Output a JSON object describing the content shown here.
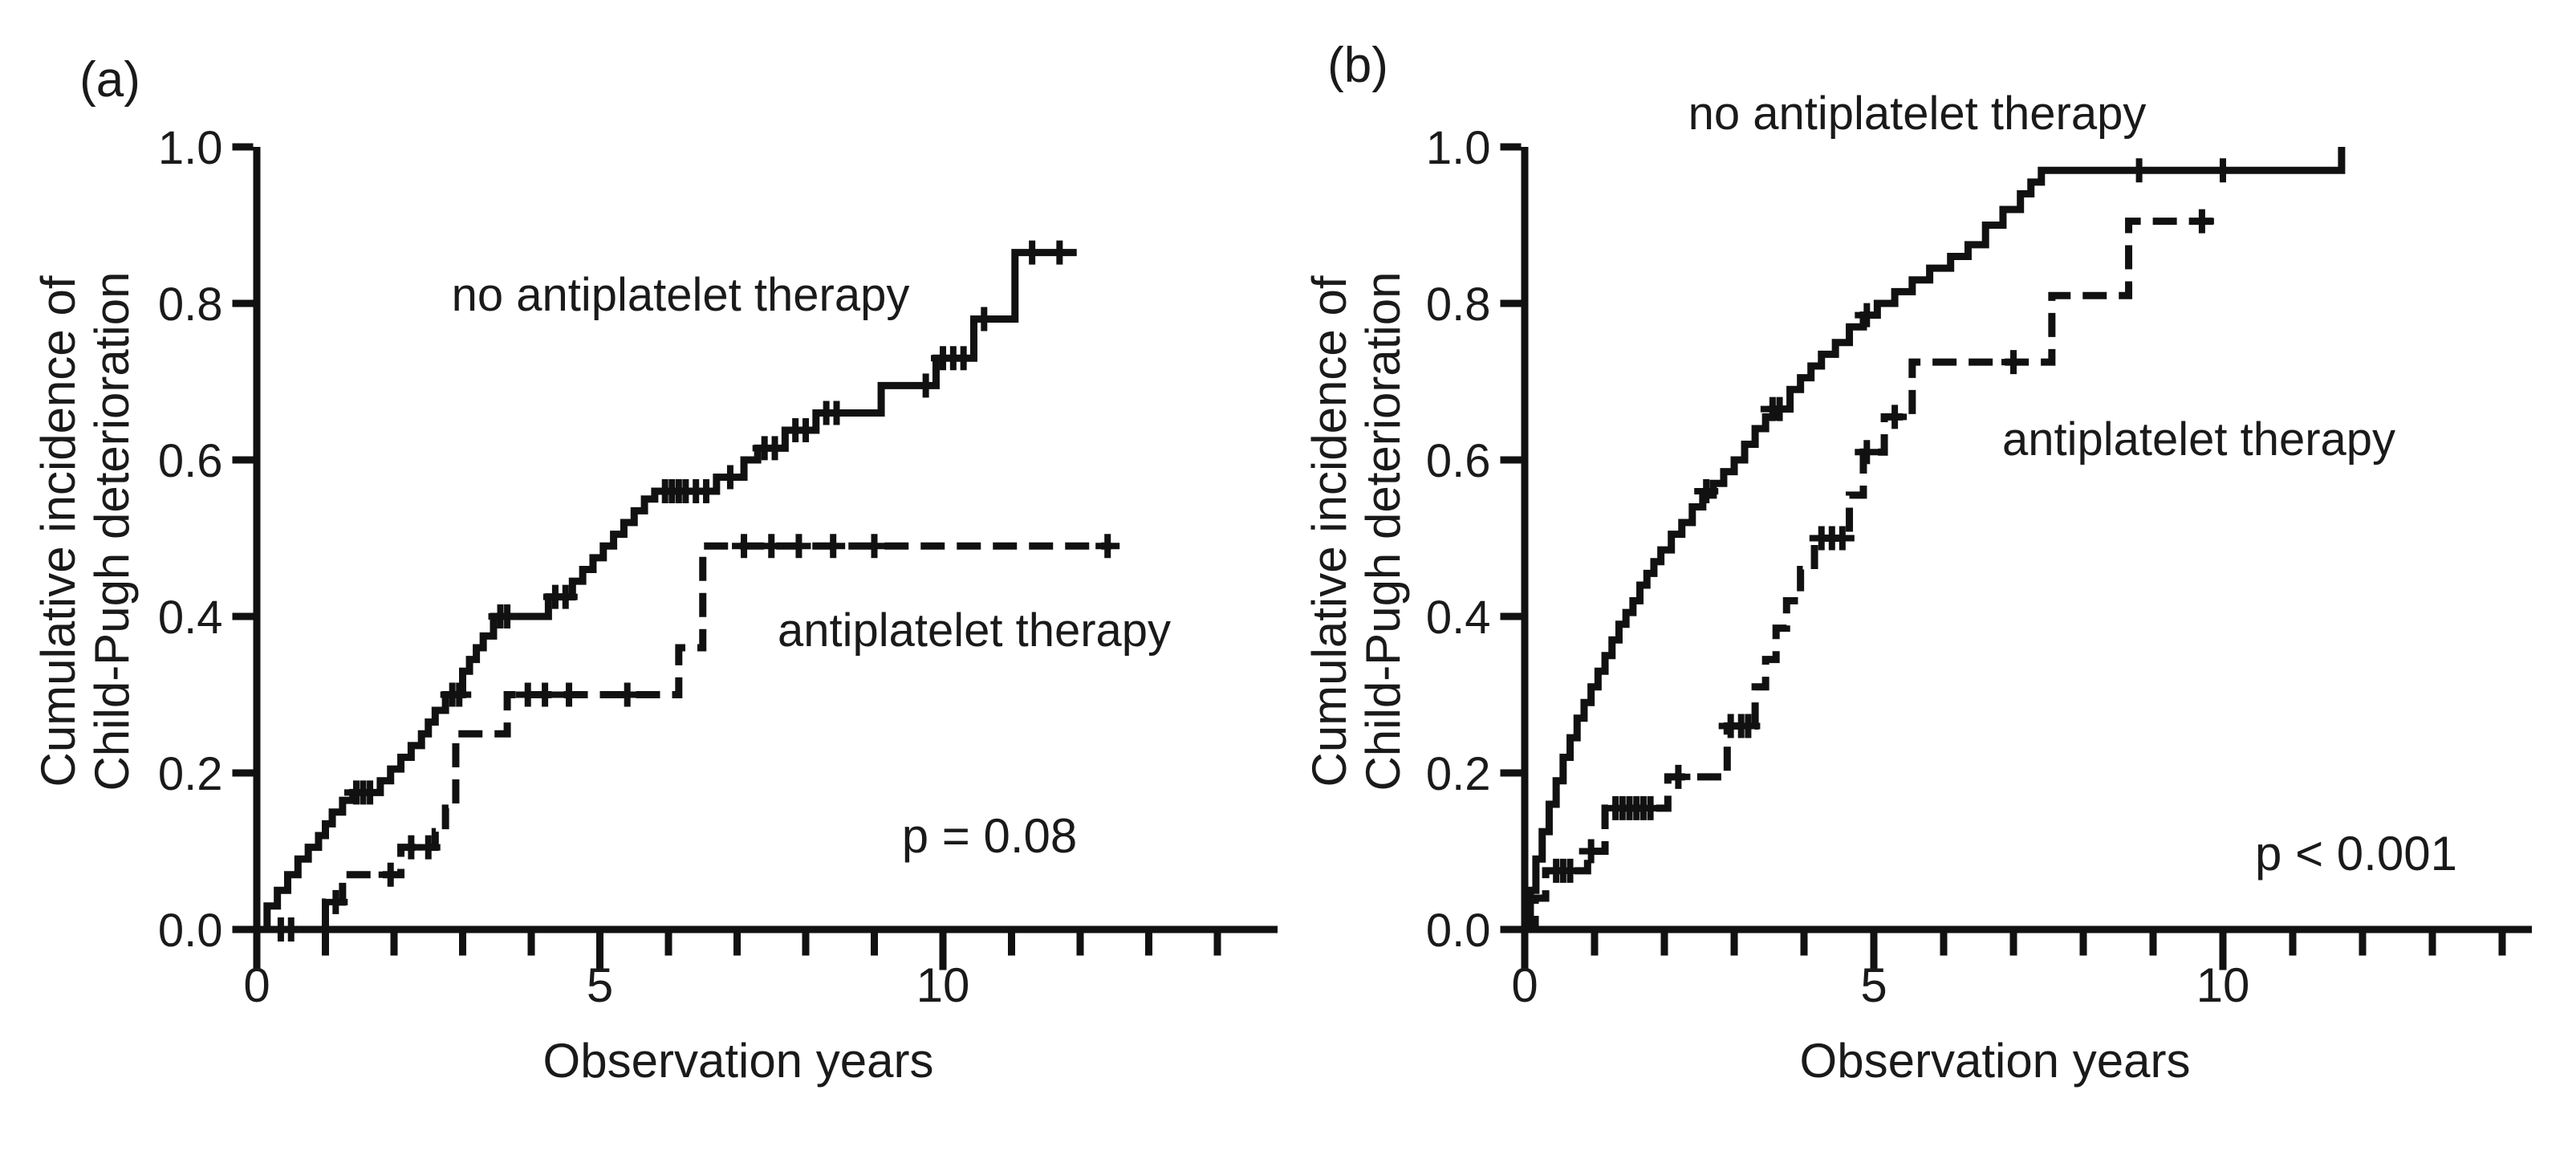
{
  "colors": {
    "curve": "#111111",
    "text": "#1a1a1a",
    "background": "#ffffff"
  },
  "chart_data": {
    "type": "line",
    "chart_kind": "cumulative-incidence-step-curves",
    "panels": [
      {
        "label": "(a)",
        "xlabel": "Observation years",
        "ylabel_line1": "Cumulative incidence of",
        "ylabel_line2": "Child-Pugh deterioration",
        "p_value": "p = 0.08",
        "xlim": [
          0,
          14.8
        ],
        "ylim": [
          0,
          1.0
        ],
        "x_major_ticks": [
          0,
          5,
          10
        ],
        "x_major_tick_labels": [
          "0",
          "5",
          "10"
        ],
        "x_minor_ticks": [
          1,
          2,
          3,
          4,
          6,
          7,
          8,
          9,
          11,
          12,
          13,
          14
        ],
        "y_ticks": [
          0,
          0.2,
          0.4,
          0.6,
          0.8,
          1.0
        ],
        "y_tick_labels": [
          "0.0",
          "0.2",
          "0.4",
          "0.6",
          "0.8",
          "1.0"
        ],
        "grid": false,
        "series": [
          {
            "name": "no antiplatelet therapy",
            "line_style": "solid",
            "end_x": 11.95,
            "steps": [
              [
                0,
                0
              ],
              [
                0.15,
                0.03
              ],
              [
                0.3,
                0.05
              ],
              [
                0.45,
                0.07
              ],
              [
                0.6,
                0.09
              ],
              [
                0.75,
                0.105
              ],
              [
                0.9,
                0.12
              ],
              [
                1.0,
                0.135
              ],
              [
                1.1,
                0.15
              ],
              [
                1.25,
                0.165
              ],
              [
                1.4,
                0.175
              ],
              [
                1.8,
                0.19
              ],
              [
                1.95,
                0.205
              ],
              [
                2.1,
                0.22
              ],
              [
                2.25,
                0.235
              ],
              [
                2.4,
                0.25
              ],
              [
                2.5,
                0.265
              ],
              [
                2.6,
                0.28
              ],
              [
                2.75,
                0.3
              ],
              [
                3.0,
                0.33
              ],
              [
                3.1,
                0.345
              ],
              [
                3.2,
                0.36
              ],
              [
                3.3,
                0.375
              ],
              [
                3.45,
                0.4
              ],
              [
                4.25,
                0.425
              ],
              [
                4.6,
                0.445
              ],
              [
                4.75,
                0.46
              ],
              [
                4.9,
                0.475
              ],
              [
                5.05,
                0.49
              ],
              [
                5.2,
                0.505
              ],
              [
                5.35,
                0.52
              ],
              [
                5.5,
                0.535
              ],
              [
                5.65,
                0.55
              ],
              [
                5.8,
                0.56
              ],
              [
                6.7,
                0.578
              ],
              [
                7.1,
                0.6
              ],
              [
                7.3,
                0.615
              ],
              [
                7.7,
                0.638
              ],
              [
                8.15,
                0.66
              ],
              [
                9.1,
                0.695
              ],
              [
                9.9,
                0.73
              ],
              [
                10.45,
                0.78
              ],
              [
                11.05,
                0.865
              ]
            ],
            "censor_marks": [
              [
                1.45,
                0.175
              ],
              [
                1.55,
                0.175
              ],
              [
                1.65,
                0.175
              ],
              [
                2.85,
                0.3
              ],
              [
                2.95,
                0.3
              ],
              [
                3.55,
                0.4
              ],
              [
                3.65,
                0.4
              ],
              [
                4.35,
                0.425
              ],
              [
                4.5,
                0.425
              ],
              [
                5.95,
                0.56
              ],
              [
                6.05,
                0.56
              ],
              [
                6.15,
                0.56
              ],
              [
                6.25,
                0.56
              ],
              [
                6.4,
                0.56
              ],
              [
                6.55,
                0.56
              ],
              [
                6.9,
                0.578
              ],
              [
                7.4,
                0.615
              ],
              [
                7.55,
                0.615
              ],
              [
                7.85,
                0.638
              ],
              [
                8.0,
                0.638
              ],
              [
                8.3,
                0.66
              ],
              [
                8.45,
                0.66
              ],
              [
                9.75,
                0.695
              ],
              [
                10.0,
                0.73
              ],
              [
                10.15,
                0.73
              ],
              [
                10.3,
                0.73
              ],
              [
                10.6,
                0.78
              ],
              [
                11.3,
                0.865
              ],
              [
                11.7,
                0.865
              ]
            ]
          },
          {
            "name": "antiplatelet therapy",
            "line_style": "dashed",
            "end_x": 12.45,
            "steps": [
              [
                0,
                0
              ],
              [
                1.0,
                0.035
              ],
              [
                1.25,
                0.07
              ],
              [
                2.1,
                0.105
              ],
              [
                2.6,
                0.125
              ],
              [
                2.75,
                0.155
              ],
              [
                2.9,
                0.25
              ],
              [
                3.65,
                0.3
              ],
              [
                6.15,
                0.36
              ],
              [
                6.5,
                0.49
              ]
            ],
            "censor_marks": [
              [
                0.35,
                0
              ],
              [
                0.5,
                0
              ],
              [
                1.15,
                0.035
              ],
              [
                1.95,
                0.07
              ],
              [
                2.25,
                0.105
              ],
              [
                2.5,
                0.105
              ],
              [
                3.95,
                0.3
              ],
              [
                4.2,
                0.3
              ],
              [
                4.55,
                0.3
              ],
              [
                5.4,
                0.3
              ],
              [
                7.1,
                0.49
              ],
              [
                7.5,
                0.49
              ],
              [
                7.9,
                0.49
              ],
              [
                8.4,
                0.49
              ],
              [
                9.0,
                0.49
              ],
              [
                12.4,
                0.49
              ]
            ]
          }
        ]
      },
      {
        "label": "(b)",
        "xlabel": "Observation years",
        "ylabel_line1": "Cumulative incidence of",
        "ylabel_line2": "Child-Pugh deterioration",
        "p_value": "p < 0.001",
        "xlim": [
          0,
          14.4
        ],
        "ylim": [
          0,
          1.0
        ],
        "x_major_ticks": [
          0,
          5,
          10
        ],
        "x_major_tick_labels": [
          "0",
          "5",
          "10"
        ],
        "x_minor_ticks": [
          1,
          2,
          3,
          4,
          6,
          7,
          8,
          9,
          11,
          12,
          13,
          14
        ],
        "y_ticks": [
          0,
          0.2,
          0.4,
          0.6,
          0.8,
          1.0
        ],
        "y_tick_labels": [
          "0.0",
          "0.2",
          "0.4",
          "0.6",
          "0.8",
          "1.0"
        ],
        "grid": false,
        "series": [
          {
            "name": "no antiplatelet therapy",
            "line_style": "solid",
            "end_x": 11.7,
            "steps": [
              [
                0,
                0
              ],
              [
                0.08,
                0.05
              ],
              [
                0.16,
                0.09
              ],
              [
                0.25,
                0.125
              ],
              [
                0.35,
                0.16
              ],
              [
                0.45,
                0.19
              ],
              [
                0.55,
                0.22
              ],
              [
                0.65,
                0.245
              ],
              [
                0.75,
                0.27
              ],
              [
                0.85,
                0.29
              ],
              [
                0.95,
                0.31
              ],
              [
                1.05,
                0.33
              ],
              [
                1.15,
                0.35
              ],
              [
                1.25,
                0.37
              ],
              [
                1.35,
                0.39
              ],
              [
                1.45,
                0.405
              ],
              [
                1.55,
                0.42
              ],
              [
                1.65,
                0.44
              ],
              [
                1.75,
                0.455
              ],
              [
                1.85,
                0.47
              ],
              [
                1.95,
                0.485
              ],
              [
                2.1,
                0.505
              ],
              [
                2.25,
                0.52
              ],
              [
                2.4,
                0.54
              ],
              [
                2.55,
                0.555
              ],
              [
                2.7,
                0.57
              ],
              [
                2.85,
                0.585
              ],
              [
                3.0,
                0.6
              ],
              [
                3.15,
                0.62
              ],
              [
                3.3,
                0.64
              ],
              [
                3.45,
                0.655
              ],
              [
                3.6,
                0.665
              ],
              [
                3.8,
                0.69
              ],
              [
                3.95,
                0.705
              ],
              [
                4.1,
                0.72
              ],
              [
                4.25,
                0.735
              ],
              [
                4.45,
                0.75
              ],
              [
                4.65,
                0.77
              ],
              [
                4.85,
                0.785
              ],
              [
                5.05,
                0.8
              ],
              [
                5.3,
                0.815
              ],
              [
                5.55,
                0.83
              ],
              [
                5.8,
                0.845
              ],
              [
                6.1,
                0.86
              ],
              [
                6.35,
                0.875
              ],
              [
                6.6,
                0.9
              ],
              [
                6.85,
                0.92
              ],
              [
                7.1,
                0.94
              ],
              [
                7.25,
                0.955
              ],
              [
                7.4,
                0.97
              ],
              [
                11.7,
                1.0
              ]
            ],
            "censor_marks": [
              [
                2.6,
                0.56
              ],
              [
                3.55,
                0.665
              ],
              [
                3.65,
                0.665
              ],
              [
                4.9,
                0.785
              ],
              [
                8.8,
                0.97
              ],
              [
                10.0,
                0.97
              ]
            ]
          },
          {
            "name": "antiplatelet therapy",
            "line_style": "dashed",
            "end_x": 9.9,
            "steps": [
              [
                0,
                0
              ],
              [
                0.15,
                0.04
              ],
              [
                0.3,
                0.075
              ],
              [
                0.9,
                0.1
              ],
              [
                1.15,
                0.155
              ],
              [
                2.05,
                0.195
              ],
              [
                2.9,
                0.26
              ],
              [
                3.3,
                0.31
              ],
              [
                3.45,
                0.345
              ],
              [
                3.6,
                0.385
              ],
              [
                3.75,
                0.42
              ],
              [
                3.95,
                0.46
              ],
              [
                4.15,
                0.5
              ],
              [
                4.65,
                0.555
              ],
              [
                4.85,
                0.61
              ],
              [
                5.15,
                0.655
              ],
              [
                5.55,
                0.725
              ],
              [
                7.55,
                0.81
              ],
              [
                8.65,
                0.905
              ]
            ],
            "censor_marks": [
              [
                0.45,
                0.075
              ],
              [
                0.55,
                0.075
              ],
              [
                0.65,
                0.075
              ],
              [
                0.95,
                0.1
              ],
              [
                1.3,
                0.155
              ],
              [
                1.4,
                0.155
              ],
              [
                1.5,
                0.155
              ],
              [
                1.6,
                0.155
              ],
              [
                1.7,
                0.155
              ],
              [
                1.8,
                0.155
              ],
              [
                2.2,
                0.195
              ],
              [
                2.95,
                0.26
              ],
              [
                3.1,
                0.26
              ],
              [
                3.2,
                0.26
              ],
              [
                4.25,
                0.5
              ],
              [
                4.4,
                0.5
              ],
              [
                4.55,
                0.5
              ],
              [
                4.9,
                0.61
              ],
              [
                5.3,
                0.655
              ],
              [
                7.0,
                0.725
              ],
              [
                9.7,
                0.905
              ]
            ]
          }
        ]
      }
    ]
  }
}
